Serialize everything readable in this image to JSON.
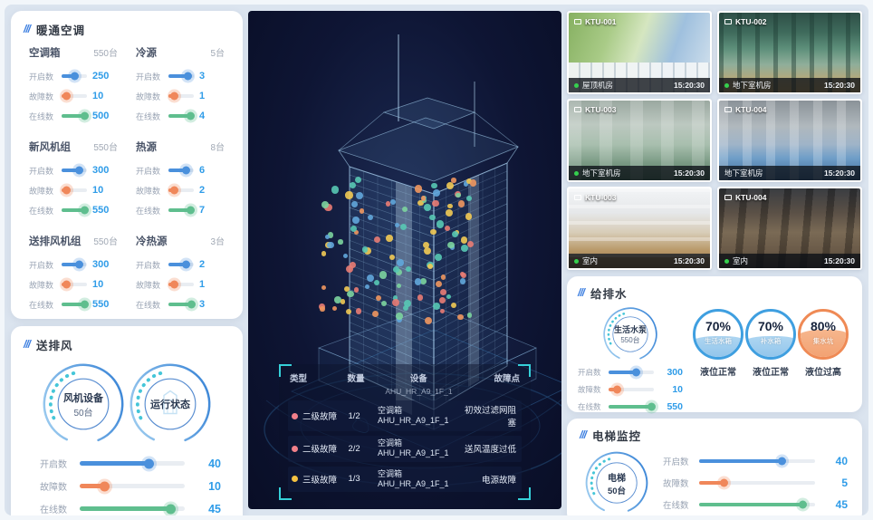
{
  "hvac": {
    "title": "暖通空调",
    "groups": [
      {
        "name": "空调箱",
        "count": "550台",
        "stats": [
          {
            "label": "开启数",
            "value": "250",
            "pct": 55
          },
          {
            "label": "故障数",
            "value": "10",
            "pct": 22
          },
          {
            "label": "在线数",
            "value": "500",
            "pct": 93
          }
        ]
      },
      {
        "name": "冷源",
        "count": "5台",
        "stats": [
          {
            "label": "开启数",
            "value": "3",
            "pct": 78
          },
          {
            "label": "故障数",
            "value": "1",
            "pct": 25
          },
          {
            "label": "在线数",
            "value": "4",
            "pct": 88
          }
        ]
      },
      {
        "name": "新风机组",
        "count": "550台",
        "stats": [
          {
            "label": "开启数",
            "value": "300",
            "pct": 70
          },
          {
            "label": "故障数",
            "value": "10",
            "pct": 22
          },
          {
            "label": "在线数",
            "value": "550",
            "pct": 93
          }
        ]
      },
      {
        "name": "热源",
        "count": "8台",
        "stats": [
          {
            "label": "开启数",
            "value": "6",
            "pct": 73
          },
          {
            "label": "故障数",
            "value": "2",
            "pct": 25
          },
          {
            "label": "在线数",
            "value": "7",
            "pct": 90
          }
        ]
      },
      {
        "name": "送排风机组",
        "count": "550台",
        "stats": [
          {
            "label": "开启数",
            "value": "300",
            "pct": 72
          },
          {
            "label": "故障数",
            "value": "10",
            "pct": 22
          },
          {
            "label": "在线数",
            "value": "550",
            "pct": 93
          }
        ]
      },
      {
        "name": "冷热源",
        "count": "3台",
        "stats": [
          {
            "label": "开启数",
            "value": "2",
            "pct": 70
          },
          {
            "label": "故障数",
            "value": "1",
            "pct": 25
          },
          {
            "label": "在线数",
            "value": "3",
            "pct": 93
          }
        ]
      }
    ]
  },
  "fans": {
    "title": "送排风",
    "gauges": [
      {
        "name": "风机设备",
        "count": "50台"
      },
      {
        "name": "运行状态",
        "count": ""
      }
    ],
    "stats": [
      {
        "label": "开启数",
        "value": "40",
        "pct": 66
      },
      {
        "label": "故障数",
        "value": "10",
        "pct": 24
      },
      {
        "label": "在线数",
        "value": "45",
        "pct": 87
      }
    ]
  },
  "building": {
    "dot_colors": [
      "#7cd49e",
      "#62a7db",
      "#ef975f",
      "#f2ca54",
      "#e97c74",
      "#58c8b4"
    ],
    "table": {
      "headers": [
        "类型",
        "数量",
        "设备",
        "故障点"
      ],
      "partial_device": "AHU_HR_A9_1F_1",
      "rows": [
        {
          "level": "二级故障",
          "dot": "#f2808a",
          "count": "1/2",
          "device_type": "空调箱",
          "device_id": "AHU_HR_A9_1F_1",
          "fault": "初效过滤网阻塞"
        },
        {
          "level": "二级故障",
          "dot": "#f2808a",
          "count": "2/2",
          "device_type": "空调箱",
          "device_id": "AHU_HR_A9_1F_1",
          "fault": "送风温度过低"
        },
        {
          "level": "三级故障",
          "dot": "#f5c242",
          "count": "1/3",
          "device_type": "空调箱",
          "device_id": "AHU_HR_A9_1F_1",
          "fault": "电源故障"
        }
      ]
    }
  },
  "cameras": {
    "tiles": [
      {
        "id": "KTU-001",
        "location": "屋顶机房",
        "time": "15:20:30",
        "online": true
      },
      {
        "id": "KTU-002",
        "location": "地下室机房",
        "time": "15:20:30",
        "online": true
      },
      {
        "id": "KTU-003",
        "location": "地下室机房",
        "time": "15:20:30",
        "online": true
      },
      {
        "id": "KTU-004",
        "location": "地下室机房",
        "time": "15:20:30",
        "online": false
      },
      {
        "id": "KTU-003",
        "location": "室内",
        "time": "15:20:30",
        "online": true
      },
      {
        "id": "KTU-004",
        "location": "室内",
        "time": "15:20:30",
        "online": true
      }
    ]
  },
  "water": {
    "title": "给排水",
    "gauge": {
      "name": "生活水泵",
      "count": "550台"
    },
    "stats": [
      {
        "label": "开启数",
        "value": "300",
        "pct": 62
      },
      {
        "label": "故障数",
        "value": "10",
        "pct": 20
      },
      {
        "label": "在线数",
        "value": "550",
        "pct": 95
      }
    ],
    "tanks": [
      {
        "pct": "70%",
        "name": "生活水箱",
        "status": "液位正常",
        "type": "blue",
        "fill": 52
      },
      {
        "pct": "70%",
        "name": "补水箱",
        "status": "液位正常",
        "type": "blue",
        "fill": 52
      },
      {
        "pct": "80%",
        "name": "集水坑",
        "status": "液位过高",
        "type": "orange",
        "fill": 66
      }
    ]
  },
  "elevator": {
    "title": "电梯监控",
    "gauge": {
      "name": "电梯",
      "count": "50台"
    },
    "stats": [
      {
        "label": "开启数",
        "value": "40",
        "pct": 72
      },
      {
        "label": "故障数",
        "value": "5",
        "pct": 22
      },
      {
        "label": "在线数",
        "value": "45",
        "pct": 90
      }
    ]
  }
}
